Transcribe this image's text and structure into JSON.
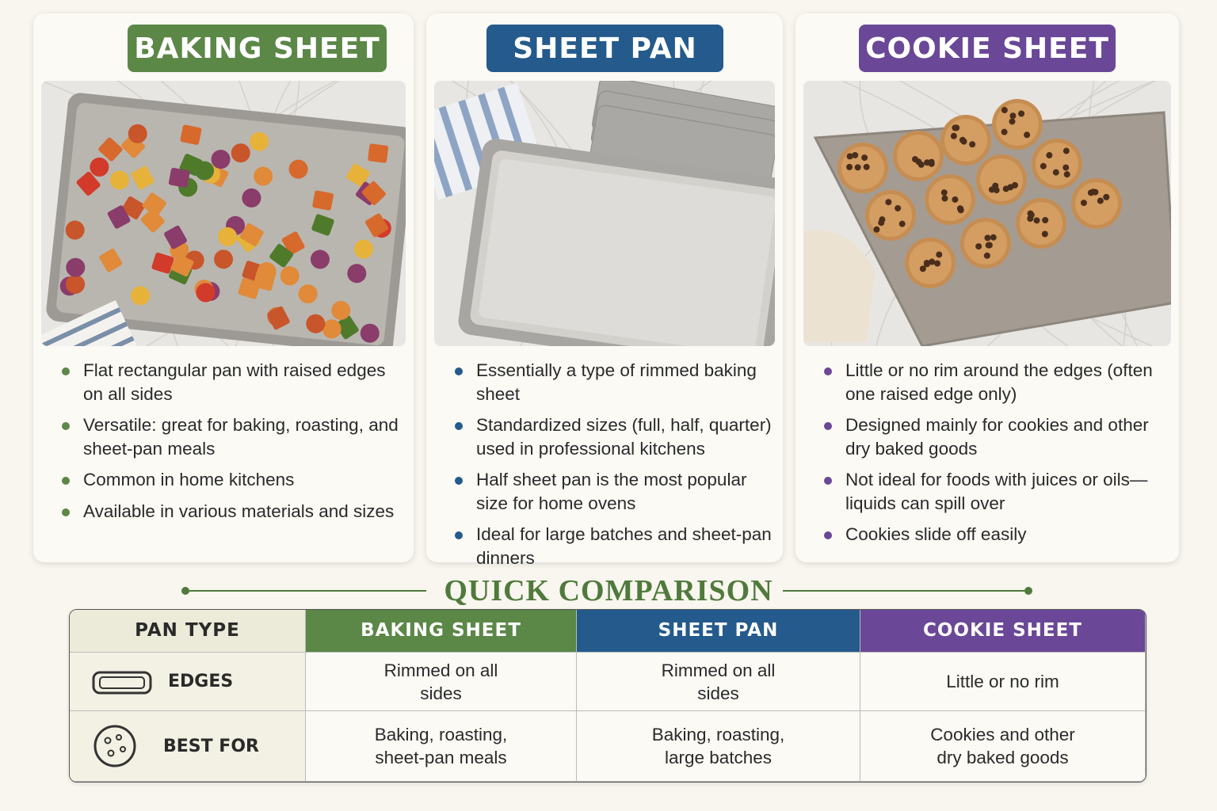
{
  "cards": [
    {
      "title": "BAKING SHEET",
      "color": "#5b8747",
      "bullets": [
        "Flat rectangular pan with raised edges on all sides",
        "Versatile: great for baking, roasting, and sheet-pan meals",
        "Common in home kitchens",
        "Available in various materials and sizes"
      ]
    },
    {
      "title": "SHEET PAN",
      "color": "#245a8c",
      "bullets": [
        "Essentially a type of rimmed baking sheet",
        "Standardized sizes (full, half, quarter) used in professional kitchens",
        "Half sheet pan is the most popular size for home ovens",
        "Ideal for large batches and sheet-pan dinners"
      ]
    },
    {
      "title": "COOKIE SHEET",
      "color": "#6a4797",
      "bullets": [
        "Little or no rim around the edges (often one raised edge only)",
        "Designed mainly for cookies and other dry baked goods",
        "Not ideal for foods with juices or oils—liquids can spill over",
        "Cookies slide off easily"
      ]
    }
  ],
  "comparison": {
    "title": "QUICK COMPARISON",
    "header": [
      "PAN TYPE",
      "BAKING SHEET",
      "SHEET PAN",
      "COOKIE SHEET"
    ],
    "rows": [
      [
        "EDGES",
        "Rimmed on all sides",
        "Rimmed on all sides",
        "Little or no rim"
      ],
      [
        "BEST FOR",
        "Baking, roasting, sheet-pan meals",
        "Baking, roasting, large batches",
        "Cookies and other dry baked goods"
      ]
    ]
  }
}
